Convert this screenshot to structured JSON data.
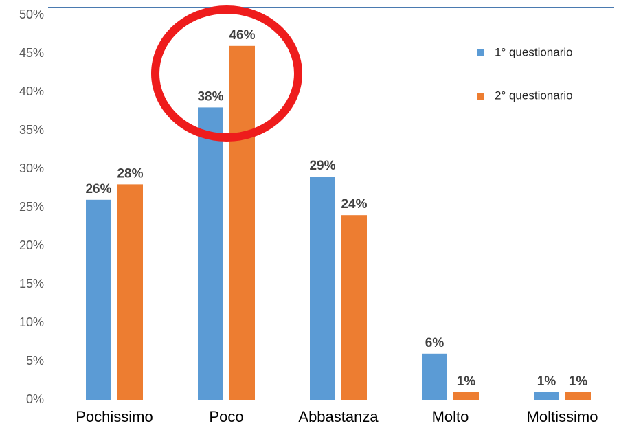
{
  "chart_data": {
    "type": "bar",
    "categories": [
      "Pochissimo",
      "Poco",
      "Abbastanza",
      "Molto",
      "Moltissimo"
    ],
    "series": [
      {
        "name": "1° questionario",
        "color": "#5b9bd5",
        "values": [
          26,
          38,
          29,
          6,
          1
        ],
        "value_labels": [
          "26%",
          "38%",
          "29%",
          "6%",
          "1%"
        ]
      },
      {
        "name": "2° questionario",
        "color": "#ed7d31",
        "values": [
          28,
          46,
          24,
          1,
          1
        ],
        "value_labels": [
          "28%",
          "46%",
          "24%",
          "1%",
          "1%"
        ]
      }
    ],
    "ylim": [
      0,
      50
    ],
    "yticks": [
      {
        "value": 0,
        "label": "0%"
      },
      {
        "value": 5,
        "label": "5%"
      },
      {
        "value": 10,
        "label": "10%"
      },
      {
        "value": 15,
        "label": "15%"
      },
      {
        "value": 20,
        "label": "20%"
      },
      {
        "value": 25,
        "label": "25%"
      },
      {
        "value": 30,
        "label": "30%"
      },
      {
        "value": 35,
        "label": "35%"
      },
      {
        "value": 40,
        "label": "40%"
      },
      {
        "value": 45,
        "label": "45%"
      },
      {
        "value": 50,
        "label": "50%"
      }
    ],
    "legend": "top-right"
  }
}
